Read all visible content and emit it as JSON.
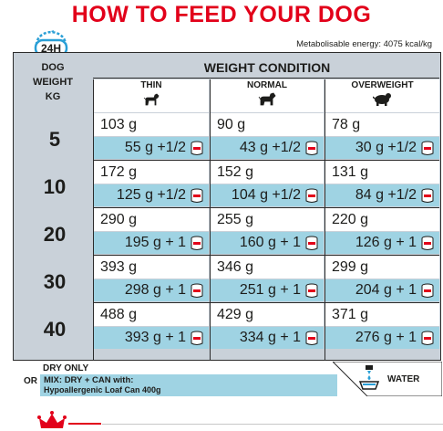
{
  "header": {
    "title": "HOW TO FEED YOUR DOG",
    "clock_label": "24H",
    "energy": "Metabolisable energy: 4075 kcal/kg"
  },
  "table": {
    "weight_header": [
      "DOG",
      "WEIGHT",
      "KG"
    ],
    "condition_header": "WEIGHT CONDITION",
    "columns": [
      "THIN",
      "NORMAL",
      "OVERWEIGHT"
    ],
    "rows": [
      {
        "weight": "5",
        "dry": [
          "103 g",
          "90 g",
          "78 g"
        ],
        "mix": [
          "55 g +1/2",
          "43 g +1/2",
          "30 g +1/2"
        ]
      },
      {
        "weight": "10",
        "dry": [
          "172 g",
          "152 g",
          "131 g"
        ],
        "mix": [
          "125 g +1/2",
          "104 g +1/2",
          "84 g +1/2"
        ]
      },
      {
        "weight": "20",
        "dry": [
          "290 g",
          "255 g",
          "220 g"
        ],
        "mix": [
          "195 g + 1",
          "160 g + 1",
          "126 g + 1"
        ]
      },
      {
        "weight": "30",
        "dry": [
          "393 g",
          "346 g",
          "299 g"
        ],
        "mix": [
          "298 g + 1",
          "251 g + 1",
          "204 g + 1"
        ]
      },
      {
        "weight": "40",
        "dry": [
          "488 g",
          "429 g",
          "371 g"
        ],
        "mix": [
          "393 g + 1",
          "334 g + 1",
          "276 g + 1"
        ]
      }
    ]
  },
  "legend": {
    "dry_only": "DRY ONLY",
    "or": "OR",
    "mix_line1": "MIX: DRY + CAN with:",
    "mix_line2": "Hypoallergenic Loaf Can 400g",
    "water": "WATER"
  },
  "colors": {
    "title_red": "#e2001a",
    "mix_blue": "#9fd3e3",
    "panel_grey": "#c9d1d9",
    "clock_blue": "#2a9fd6"
  },
  "icons": [
    "clock-24h-icon",
    "dog-thin-icon",
    "dog-normal-icon",
    "dog-overweight-icon",
    "can-icon",
    "water-bowl-icon",
    "royal-canin-crown-logo"
  ]
}
